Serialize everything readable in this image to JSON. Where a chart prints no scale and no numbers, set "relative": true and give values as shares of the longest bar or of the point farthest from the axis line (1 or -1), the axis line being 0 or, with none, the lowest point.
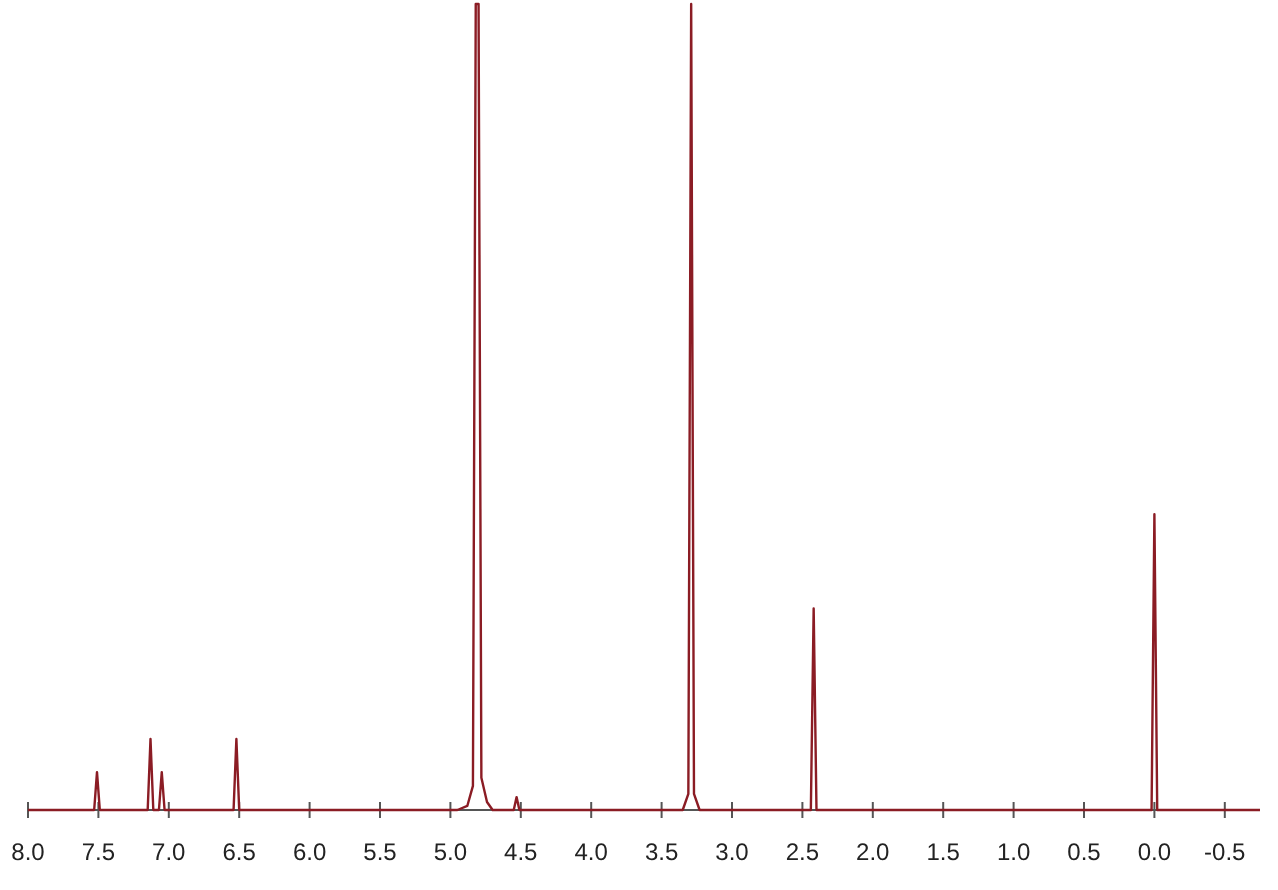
{
  "chart_data": {
    "type": "line",
    "relative": true,
    "x": [
      8.0,
      7.53,
      7.51,
      7.49,
      7.15,
      7.13,
      7.11,
      7.07,
      7.05,
      7.03,
      6.54,
      6.52,
      6.5,
      4.95,
      4.88,
      4.84,
      4.82,
      4.8,
      4.78,
      4.74,
      4.7,
      4.55,
      4.53,
      4.51,
      3.35,
      3.31,
      3.29,
      3.27,
      3.23,
      2.44,
      2.42,
      2.4,
      0.02,
      0.0,
      -0.02,
      -0.75
    ],
    "series": [
      {
        "color": "#8b1c24",
        "values": [
          0,
          0,
          0.047,
          0,
          0,
          0.088,
          0,
          0,
          0.047,
          0,
          0,
          0.088,
          0,
          0,
          0.005,
          0.03,
          1,
          1,
          0.04,
          0.01,
          0,
          0,
          0.016,
          0,
          0,
          0.02,
          1,
          0.02,
          0,
          0,
          0.25,
          0,
          0,
          0.367,
          0,
          0
        ]
      }
    ],
    "xlim": [
      8.0,
      -0.75
    ],
    "xticks": [
      {
        "value": 8.0,
        "label": "8.0"
      },
      {
        "value": 7.5,
        "label": "7.5"
      },
      {
        "value": 7.0,
        "label": "7.0"
      },
      {
        "value": 6.5,
        "label": "6.5"
      },
      {
        "value": 6.0,
        "label": "6.0"
      },
      {
        "value": 5.5,
        "label": "5.5"
      },
      {
        "value": 5.0,
        "label": "5.0"
      },
      {
        "value": 4.5,
        "label": "4.5"
      },
      {
        "value": 4.0,
        "label": "4.0"
      },
      {
        "value": 3.5,
        "label": "3.5"
      },
      {
        "value": 3.0,
        "label": "3.0"
      },
      {
        "value": 2.5,
        "label": "2.5"
      },
      {
        "value": 2.0,
        "label": "2.0"
      },
      {
        "value": 1.5,
        "label": "1.5"
      },
      {
        "value": 1.0,
        "label": "1.0"
      },
      {
        "value": 0.5,
        "label": "0.5"
      },
      {
        "value": 0.0,
        "label": "0.0"
      },
      {
        "value": -0.5,
        "label": "-0.5"
      }
    ],
    "grid": false,
    "marker": "none",
    "line_style": "solid"
  }
}
